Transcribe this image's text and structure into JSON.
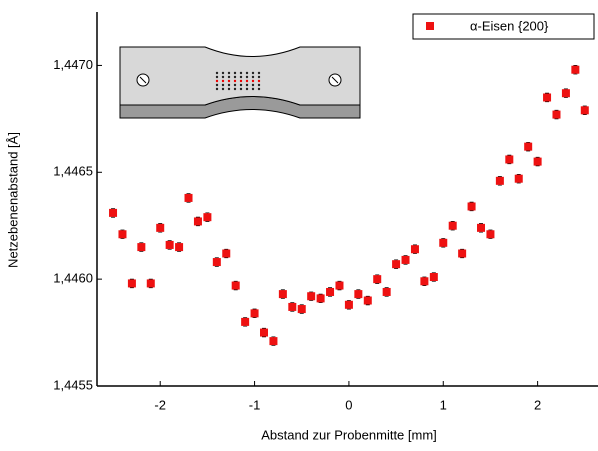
{
  "chart_data": {
    "type": "scatter",
    "x_label": "Abstand zur Probenmitte [mm]",
    "y_label": "Netzebenenabstand [Å]",
    "xlim": [
      -2.67,
      2.64
    ],
    "ylim": [
      1.4455,
      1.44725
    ],
    "xticks": [
      -2,
      -1,
      0,
      1,
      2
    ],
    "yticks": [
      {
        "value": 1.4455,
        "label": "1,4455"
      },
      {
        "value": 1.446,
        "label": "1,4460"
      },
      {
        "value": 1.4465,
        "label": "1,4465"
      },
      {
        "value": 1.447,
        "label": "1,4470"
      }
    ],
    "legend_position": "upper right",
    "series": [
      {
        "name": "α-Eisen {200}",
        "color": "#ee1111",
        "x": [
          -2.5,
          -2.4,
          -2.3,
          -2.2,
          -2.1,
          -2.0,
          -1.9,
          -1.8,
          -1.7,
          -1.6,
          -1.5,
          -1.4,
          -1.3,
          -1.2,
          -1.1,
          -1.0,
          -0.9,
          -0.8,
          -0.7,
          -0.6,
          -0.5,
          -0.4,
          -0.3,
          -0.2,
          -0.1,
          0.0,
          0.1,
          0.2,
          0.3,
          0.4,
          0.5,
          0.6,
          0.7,
          0.8,
          0.9,
          1.0,
          1.1,
          1.2,
          1.3,
          1.4,
          1.5,
          1.6,
          1.7,
          1.8,
          1.9,
          2.0,
          2.1,
          2.2,
          2.3,
          2.4,
          2.5
        ],
        "values": [
          1.44631,
          1.44621,
          1.44598,
          1.44615,
          1.44598,
          1.44624,
          1.44616,
          1.44615,
          1.44638,
          1.44627,
          1.44629,
          1.44608,
          1.44612,
          1.44597,
          1.4458,
          1.44584,
          1.44575,
          1.44571,
          1.44593,
          1.44587,
          1.44586,
          1.44592,
          1.44591,
          1.44594,
          1.44597,
          1.44588,
          1.44593,
          1.4459,
          1.446,
          1.44594,
          1.44607,
          1.44609,
          1.44614,
          1.44599,
          1.44601,
          1.44617,
          1.44625,
          1.44612,
          1.44634,
          1.44624,
          1.44621,
          1.44646,
          1.44656,
          1.44647,
          1.44662,
          1.44655,
          1.44685,
          1.44677,
          1.44687,
          1.44698,
          1.44679
        ],
        "errors": [
          2e-05,
          2e-05,
          2e-05,
          2e-05,
          2e-05,
          2e-05,
          2e-05,
          2e-05,
          2e-05,
          2e-05,
          2e-05,
          2e-05,
          2e-05,
          2e-05,
          2e-05,
          2e-05,
          2e-05,
          2e-05,
          2e-05,
          2e-05,
          2e-05,
          2e-05,
          2e-05,
          2e-05,
          2e-05,
          2e-05,
          2e-05,
          2e-05,
          2e-05,
          2e-05,
          2e-05,
          2e-05,
          2e-05,
          2e-05,
          2e-05,
          2e-05,
          2e-05,
          2e-05,
          2e-05,
          2e-05,
          2e-05,
          2e-05,
          2e-05,
          2e-05,
          2e-05,
          2e-05,
          2e-05,
          2e-05,
          2e-05,
          2e-05,
          2e-05
        ]
      }
    ]
  }
}
